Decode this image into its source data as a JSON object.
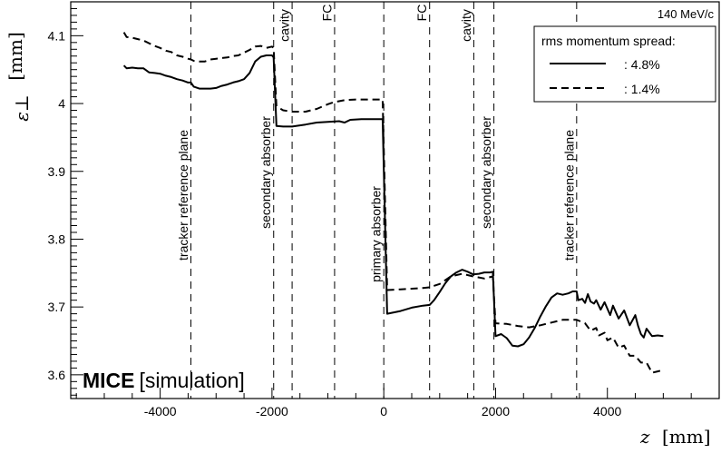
{
  "chart_data": {
    "type": "line",
    "xlabel_var": "z",
    "xlabel_unit": "[mm]",
    "ylabel_var": "ε⊥",
    "ylabel_unit": "[mm]",
    "xlim": [
      -5600,
      6000
    ],
    "ylim": [
      3.565,
      4.15
    ],
    "x_ticks": [
      -4000,
      -2000,
      0,
      2000,
      4000
    ],
    "y_ticks": [
      3.6,
      3.7,
      3.8,
      3.9,
      4,
      4.1
    ],
    "grid": false,
    "legend_position": "top-right",
    "legend_title": "rms momentum spread:",
    "top_right_note": "140 MeV/c",
    "watermark_bold": "MICE",
    "watermark_normal": "[simulation]",
    "vlines": [
      {
        "x": -3450,
        "label": "tracker reference plane"
      },
      {
        "x": -1970,
        "label": "secondary absorber"
      },
      {
        "x": -1640,
        "label": "cavity"
      },
      {
        "x": -880,
        "label": "FC"
      },
      {
        "x": 0,
        "label": "primary absorber"
      },
      {
        "x": 820,
        "label": "FC"
      },
      {
        "x": 1610,
        "label": "cavity"
      },
      {
        "x": 1970,
        "label": "secondary absorber"
      },
      {
        "x": 3450,
        "label": "tracker reference plane"
      }
    ],
    "series": [
      {
        "name": ": 4.8%",
        "style": "solid",
        "points": [
          [
            -4650,
            4.056
          ],
          [
            -4600,
            4.052
          ],
          [
            -4500,
            4.053
          ],
          [
            -4400,
            4.052
          ],
          [
            -4300,
            4.052
          ],
          [
            -4200,
            4.046
          ],
          [
            -4100,
            4.045
          ],
          [
            -4000,
            4.044
          ],
          [
            -3900,
            4.041
          ],
          [
            -3800,
            4.039
          ],
          [
            -3700,
            4.036
          ],
          [
            -3600,
            4.034
          ],
          [
            -3500,
            4.031
          ],
          [
            -3450,
            4.031
          ],
          [
            -3400,
            4.025
          ],
          [
            -3300,
            4.022
          ],
          [
            -3200,
            4.022
          ],
          [
            -3100,
            4.022
          ],
          [
            -3000,
            4.023
          ],
          [
            -2900,
            4.026
          ],
          [
            -2800,
            4.028
          ],
          [
            -2700,
            4.031
          ],
          [
            -2600,
            4.033
          ],
          [
            -2500,
            4.036
          ],
          [
            -2400,
            4.045
          ],
          [
            -2300,
            4.062
          ],
          [
            -2200,
            4.069
          ],
          [
            -2100,
            4.071
          ],
          [
            -2000,
            4.071
          ],
          [
            -1970,
            4.068
          ],
          [
            -1920,
            3.967
          ],
          [
            -1800,
            3.966
          ],
          [
            -1640,
            3.966
          ],
          [
            -1400,
            3.969
          ],
          [
            -1200,
            3.972
          ],
          [
            -1000,
            3.973
          ],
          [
            -800,
            3.974
          ],
          [
            -700,
            3.972
          ],
          [
            -600,
            3.976
          ],
          [
            -400,
            3.977
          ],
          [
            -200,
            3.977
          ],
          [
            -20,
            3.977
          ],
          [
            60,
            3.69
          ],
          [
            300,
            3.694
          ],
          [
            500,
            3.699
          ],
          [
            700,
            3.702
          ],
          [
            820,
            3.703
          ],
          [
            900,
            3.71
          ],
          [
            1000,
            3.722
          ],
          [
            1100,
            3.735
          ],
          [
            1200,
            3.745
          ],
          [
            1300,
            3.751
          ],
          [
            1400,
            3.755
          ],
          [
            1500,
            3.752
          ],
          [
            1600,
            3.748
          ],
          [
            1700,
            3.749
          ],
          [
            1800,
            3.751
          ],
          [
            1900,
            3.751
          ],
          [
            1950,
            3.752
          ],
          [
            2000,
            3.657
          ],
          [
            2100,
            3.66
          ],
          [
            2200,
            3.654
          ],
          [
            2300,
            3.643
          ],
          [
            2400,
            3.642
          ],
          [
            2500,
            3.645
          ],
          [
            2600,
            3.655
          ],
          [
            2700,
            3.669
          ],
          [
            2800,
            3.686
          ],
          [
            2900,
            3.701
          ],
          [
            3000,
            3.714
          ],
          [
            3100,
            3.72
          ],
          [
            3200,
            3.718
          ],
          [
            3300,
            3.72
          ],
          [
            3380,
            3.723
          ],
          [
            3450,
            3.723
          ],
          [
            3480,
            3.71
          ],
          [
            3550,
            3.712
          ],
          [
            3600,
            3.706
          ],
          [
            3650,
            3.719
          ],
          [
            3700,
            3.708
          ],
          [
            3760,
            3.705
          ],
          [
            3800,
            3.71
          ],
          [
            3880,
            3.696
          ],
          [
            3950,
            3.707
          ],
          [
            4050,
            3.688
          ],
          [
            4100,
            3.702
          ],
          [
            4200,
            3.683
          ],
          [
            4300,
            3.695
          ],
          [
            4400,
            3.673
          ],
          [
            4500,
            3.688
          ],
          [
            4550,
            3.672
          ],
          [
            4600,
            3.66
          ],
          [
            4650,
            3.655
          ],
          [
            4700,
            3.668
          ],
          [
            4800,
            3.657
          ],
          [
            4900,
            3.658
          ],
          [
            5000,
            3.657
          ]
        ]
      },
      {
        "name": ": 1.4%",
        "style": "dashed",
        "points": [
          [
            -4650,
            4.105
          ],
          [
            -4600,
            4.098
          ],
          [
            -4500,
            4.097
          ],
          [
            -4400,
            4.095
          ],
          [
            -4300,
            4.093
          ],
          [
            -4200,
            4.089
          ],
          [
            -4100,
            4.085
          ],
          [
            -4000,
            4.082
          ],
          [
            -3900,
            4.078
          ],
          [
            -3800,
            4.076
          ],
          [
            -3700,
            4.071
          ],
          [
            -3600,
            4.069
          ],
          [
            -3500,
            4.066
          ],
          [
            -3450,
            4.065
          ],
          [
            -3400,
            4.063
          ],
          [
            -3300,
            4.062
          ],
          [
            -3200,
            4.062
          ],
          [
            -3100,
            4.065
          ],
          [
            -3000,
            4.066
          ],
          [
            -2900,
            4.067
          ],
          [
            -2800,
            4.068
          ],
          [
            -2700,
            4.07
          ],
          [
            -2600,
            4.071
          ],
          [
            -2500,
            4.075
          ],
          [
            -2400,
            4.079
          ],
          [
            -2300,
            4.084
          ],
          [
            -2200,
            4.085
          ],
          [
            -2100,
            4.082
          ],
          [
            -2000,
            4.084
          ],
          [
            -1970,
            4.082
          ],
          [
            -1920,
            3.996
          ],
          [
            -1800,
            3.99
          ],
          [
            -1640,
            3.988
          ],
          [
            -1400,
            3.988
          ],
          [
            -1200,
            3.992
          ],
          [
            -1000,
            3.999
          ],
          [
            -900,
            4.002
          ],
          [
            -700,
            4.005
          ],
          [
            -500,
            4.006
          ],
          [
            -300,
            4.006
          ],
          [
            -20,
            4.006
          ],
          [
            60,
            3.725
          ],
          [
            300,
            3.726
          ],
          [
            500,
            3.727
          ],
          [
            700,
            3.728
          ],
          [
            820,
            3.729
          ],
          [
            1000,
            3.734
          ],
          [
            1200,
            3.745
          ],
          [
            1400,
            3.749
          ],
          [
            1600,
            3.745
          ],
          [
            1800,
            3.742
          ],
          [
            1950,
            3.745
          ],
          [
            2000,
            3.676
          ],
          [
            2200,
            3.675
          ],
          [
            2400,
            3.672
          ],
          [
            2600,
            3.67
          ],
          [
            2800,
            3.673
          ],
          [
            3000,
            3.677
          ],
          [
            3200,
            3.681
          ],
          [
            3450,
            3.681
          ],
          [
            3600,
            3.676
          ],
          [
            3700,
            3.665
          ],
          [
            3800,
            3.669
          ],
          [
            3850,
            3.658
          ],
          [
            3950,
            3.662
          ],
          [
            4000,
            3.651
          ],
          [
            4100,
            3.655
          ],
          [
            4200,
            3.64
          ],
          [
            4300,
            3.643
          ],
          [
            4400,
            3.628
          ],
          [
            4500,
            3.628
          ],
          [
            4600,
            3.618
          ],
          [
            4700,
            3.618
          ],
          [
            4800,
            3.603
          ],
          [
            4900,
            3.605
          ],
          [
            5000,
            3.607
          ]
        ]
      }
    ]
  }
}
